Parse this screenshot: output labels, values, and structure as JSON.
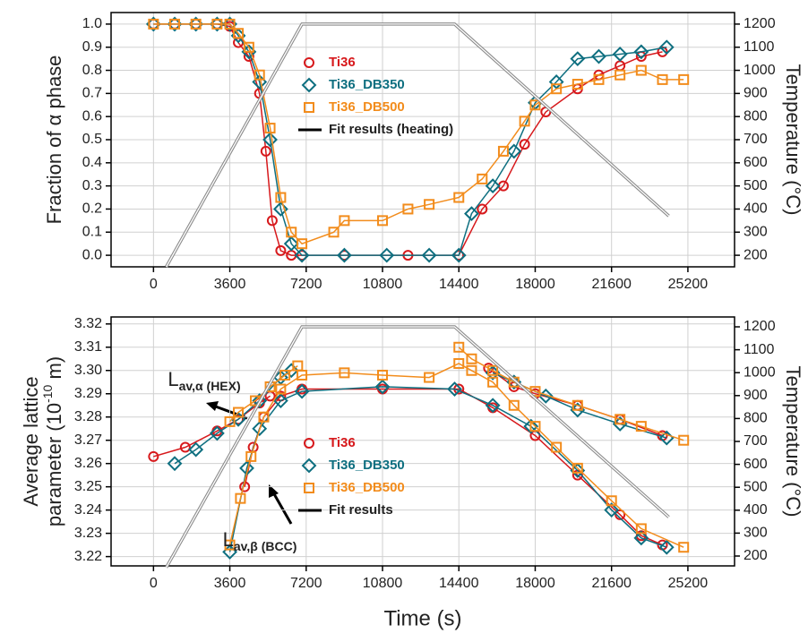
{
  "chart_data": [
    {
      "type": "scatter",
      "ylabel": "Fraction of α phase",
      "y2label": "Temperature (°C)",
      "xlim": [
        -2000,
        27400
      ],
      "xticks": [
        0,
        3600,
        7200,
        10800,
        14400,
        18000,
        21600,
        25200
      ],
      "ylim": [
        -0.05,
        1.05
      ],
      "yticks": [
        {
          "value": 0,
          "label": "0.0"
        },
        0.1,
        0.2,
        0.3,
        0.4,
        0.5,
        0.6,
        0.7,
        0.8,
        0.9,
        {
          "value": 1,
          "label": "1.0"
        }
      ],
      "y2lim": [
        150,
        1250
      ],
      "y2ticks": [
        200,
        300,
        400,
        500,
        600,
        700,
        800,
        900,
        1000,
        1100,
        1200
      ],
      "grid": true,
      "series": [
        {
          "name": "Ti36",
          "color": "#d7191c",
          "marker": "circle",
          "x": [
            0,
            1000,
            2000,
            3000,
            3600,
            4000,
            4500,
            5000,
            5300,
            5600,
            6000,
            6500,
            7000,
            9000,
            12000,
            14400,
            15500,
            16500,
            17500,
            18500,
            20000,
            21000,
            22000,
            23000,
            24000
          ],
          "values": [
            1,
            1,
            1,
            1,
            0.99,
            0.92,
            0.86,
            0.7,
            0.45,
            0.15,
            0.02,
            0,
            0,
            0,
            0,
            0,
            0.2,
            0.3,
            0.48,
            0.62,
            0.72,
            0.78,
            0.82,
            0.86,
            0.88
          ]
        },
        {
          "name": "Ti36_DB350",
          "color": "#0e6f80",
          "marker": "diamond",
          "x": [
            0,
            1000,
            2000,
            3000,
            3600,
            4000,
            4500,
            5000,
            5500,
            6000,
            6500,
            7000,
            9000,
            11000,
            13000,
            14400,
            15000,
            16000,
            17000,
            18000,
            19000,
            20000,
            21000,
            22000,
            23000,
            24200
          ],
          "values": [
            1,
            1,
            1,
            1,
            1,
            0.95,
            0.88,
            0.75,
            0.5,
            0.2,
            0.05,
            0,
            0,
            0,
            0,
            0,
            0.18,
            0.3,
            0.45,
            0.66,
            0.75,
            0.85,
            0.86,
            0.87,
            0.88,
            0.9
          ]
        },
        {
          "name": "Ti36_DB500",
          "color": "#f28c1c",
          "marker": "square",
          "x": [
            0,
            1000,
            2000,
            3000,
            3600,
            4000,
            4500,
            5000,
            5500,
            6000,
            6500,
            7000,
            8500,
            9000,
            10800,
            12000,
            13000,
            14400,
            15500,
            16500,
            17500,
            18000,
            19000,
            20000,
            21000,
            22000,
            23000,
            24000,
            25000
          ],
          "values": [
            1,
            1,
            1,
            1,
            1,
            0.96,
            0.9,
            0.78,
            0.55,
            0.25,
            0.1,
            0.05,
            0.1,
            0.15,
            0.15,
            0.2,
            0.22,
            0.25,
            0.33,
            0.45,
            0.58,
            0.65,
            0.72,
            0.74,
            0.76,
            0.78,
            0.8,
            0.76,
            0.76
          ]
        },
        {
          "color": "#8c8c8c",
          "axis": "y2",
          "x": [
            600,
            7000,
            14200,
            24300
          ],
          "values": [
            150,
            1200,
            1200,
            370
          ]
        }
      ],
      "fit_legend": {
        "name": "Fit results (heating)",
        "color": "#000000"
      }
    },
    {
      "type": "scatter",
      "ylabel": [
        "Average lattice",
        "parameter (10",
        "-10",
        " m)"
      ],
      "y2label": "Temperature (°C)",
      "xlabel": "Time (s)",
      "xlim": [
        -2000,
        27400
      ],
      "xticks": [
        0,
        3600,
        7200,
        10800,
        14400,
        18000,
        21600,
        25200
      ],
      "ylim": [
        3.216,
        3.323
      ],
      "yticks": [
        3.22,
        3.23,
        3.24,
        3.25,
        3.26,
        3.27,
        3.28,
        3.29,
        {
          "value": 3.3,
          "label": "3.30"
        },
        3.31,
        3.32
      ],
      "y2lim": [
        157,
        1243
      ],
      "y2ticks": [
        200,
        300,
        400,
        500,
        600,
        700,
        800,
        900,
        1000,
        1100,
        1200
      ],
      "grid": true,
      "series": [
        {
          "name": "Ti36",
          "color": "#d7191c",
          "marker": "circle",
          "x": [
            0,
            1500,
            3000,
            4000,
            5000,
            5500,
            5600,
            4300,
            4700,
            5200,
            6000,
            7000,
            10800,
            14400,
            16000,
            18000,
            20000,
            22000,
            23000,
            24000,
            24100,
            15800,
            17000,
            18000,
            20000,
            22000,
            24000
          ],
          "values": [
            3.263,
            3.267,
            3.274,
            3.279,
            3.286,
            3.289,
            null,
            3.25,
            3.267,
            3.28,
            3.289,
            3.292,
            3.292,
            3.292,
            3.284,
            3.272,
            3.255,
            3.238,
            3.229,
            3.225,
            null,
            3.301,
            3.293,
            3.29,
            3.285,
            3.279,
            3.272
          ]
        },
        {
          "name": "Ti36_DB350",
          "color": "#0e6f80",
          "marker": "diamond",
          "x": [
            1000,
            2000,
            3000,
            4000,
            5000,
            6000,
            6500,
            6600,
            3600,
            4400,
            5000,
            6000,
            7000,
            10800,
            14200,
            16000,
            17800,
            20000,
            21600,
            23000,
            24200,
            24300,
            16000,
            17000,
            18500,
            20000,
            22000,
            24200
          ],
          "values": [
            3.26,
            3.266,
            3.273,
            3.279,
            3.287,
            3.297,
            3.3,
            null,
            3.222,
            3.258,
            3.275,
            3.287,
            3.291,
            3.293,
            3.292,
            3.285,
            3.276,
            3.257,
            3.24,
            3.228,
            3.224,
            null,
            3.299,
            3.295,
            3.289,
            3.283,
            3.277,
            3.271
          ]
        },
        {
          "name": "Ti36_DB500",
          "color": "#f28c1c",
          "marker": "square",
          "x": [
            3600,
            4000,
            4800,
            5500,
            6200,
            6800,
            6900,
            3600,
            4100,
            4600,
            5200,
            6000,
            7000,
            9000,
            10800,
            13000,
            14400,
            15000,
            16000,
            17000,
            18000,
            19000,
            20000,
            21600,
            23000,
            25000,
            25100,
            14400,
            15000,
            16000,
            17000,
            18000,
            20000,
            22000,
            23000,
            25000
          ],
          "values": [
            3.278,
            3.282,
            3.287,
            3.293,
            3.298,
            3.302,
            null,
            3.225,
            3.245,
            3.263,
            3.28,
            3.292,
            3.298,
            3.299,
            3.298,
            3.297,
            3.303,
            3.3,
            3.295,
            3.285,
            3.276,
            3.267,
            3.258,
            3.244,
            3.232,
            3.224,
            null,
            3.31,
            3.305,
            3.3,
            3.295,
            3.291,
            3.285,
            3.279,
            3.276,
            3.27
          ]
        },
        {
          "color": "#8c8c8c",
          "axis": "y2",
          "x": [
            600,
            7000,
            14200,
            24300
          ],
          "values": [
            150,
            1200,
            1200,
            370
          ]
        }
      ],
      "fit_legend": {
        "name": "Fit results",
        "color": "#000000"
      },
      "annotations": [
        {
          "main": "L",
          "sub": "av,α (HEX)"
        },
        {
          "main": "L",
          "sub": "av,β (BCC)"
        }
      ]
    }
  ]
}
